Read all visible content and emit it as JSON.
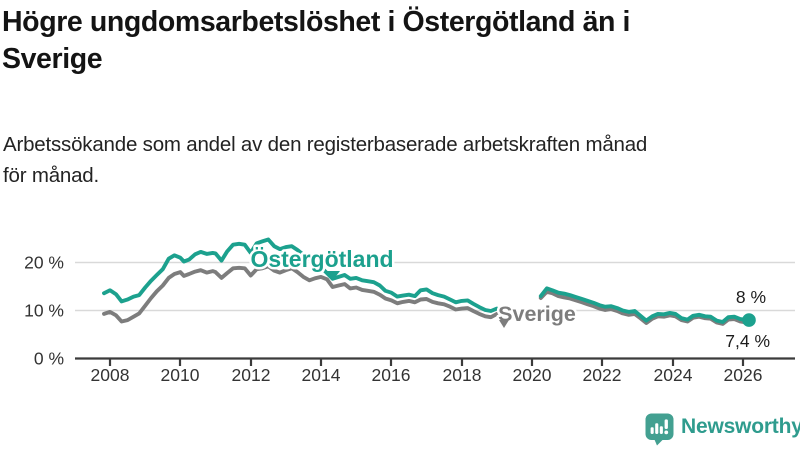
{
  "header": {
    "title_lines": [
      "Högre ungdomsarbetslöshet i Östergötland än i",
      "Sverige"
    ],
    "subtitle_lines": [
      "Arbetssökande som andel av den registerbaserade arbetskraften månad",
      "för månad."
    ]
  },
  "chart_data": {
    "type": "line",
    "title": "Högre ungdomsarbetslöshet i Östergötland än i Sverige",
    "subtitle": "Arbetssökande som andel av den registerbaserade arbetskraften månad för månad.",
    "unit": "%",
    "grid": true,
    "xlim": [
      2007.0,
      2027.5
    ],
    "ylim": [
      0,
      27
    ],
    "x_tick_labels": [
      "2008",
      "2010",
      "2012",
      "2014",
      "2016",
      "2018",
      "2020",
      "2022",
      "2024",
      "2026"
    ],
    "y_tick_labels": [
      "0 %",
      "10 %",
      "20 %"
    ],
    "y_tick_values": [
      0,
      10,
      20
    ],
    "gap_note": "data gap between 2019.0 and 2020.25",
    "series": [
      {
        "name": "Östergötland",
        "color": "#1ca18e",
        "end_label": "8 %",
        "latest_value": 8.0,
        "end_dot": true,
        "segments": [
          [
            [
              2007.83,
              13.6
            ],
            [
              2008.0,
              14.2
            ],
            [
              2008.17,
              13.4
            ],
            [
              2008.33,
              11.9
            ],
            [
              2008.5,
              12.3
            ],
            [
              2008.67,
              12.9
            ],
            [
              2008.83,
              13.2
            ],
            [
              2009.0,
              14.8
            ],
            [
              2009.17,
              16.2
            ],
            [
              2009.33,
              17.4
            ],
            [
              2009.5,
              18.6
            ],
            [
              2009.67,
              20.8
            ],
            [
              2009.83,
              21.5
            ],
            [
              2010.0,
              21.0
            ],
            [
              2010.1,
              20.2
            ],
            [
              2010.25,
              20.6
            ],
            [
              2010.42,
              21.7
            ],
            [
              2010.58,
              22.2
            ],
            [
              2010.75,
              21.8
            ],
            [
              2010.92,
              22.0
            ],
            [
              2011.0,
              21.9
            ],
            [
              2011.17,
              20.4
            ],
            [
              2011.33,
              22.3
            ],
            [
              2011.5,
              23.7
            ],
            [
              2011.67,
              23.9
            ],
            [
              2011.83,
              23.7
            ],
            [
              2012.0,
              22.0
            ],
            [
              2012.17,
              24.0
            ],
            [
              2012.33,
              24.4
            ],
            [
              2012.5,
              24.8
            ],
            [
              2012.67,
              23.4
            ],
            [
              2012.83,
              22.8
            ],
            [
              2013.0,
              23.2
            ],
            [
              2013.17,
              23.4
            ],
            [
              2013.33,
              22.6
            ],
            [
              2013.5,
              21.6
            ],
            [
              2013.67,
              20.7
            ],
            [
              2013.83,
              19.9
            ],
            [
              2014.0,
              19.0
            ],
            [
              2014.17,
              17.8
            ],
            [
              2014.33,
              16.6
            ],
            [
              2014.5,
              17.0
            ],
            [
              2014.67,
              17.4
            ],
            [
              2014.83,
              16.6
            ],
            [
              2015.0,
              16.8
            ],
            [
              2015.17,
              16.3
            ],
            [
              2015.33,
              16.1
            ],
            [
              2015.5,
              15.9
            ],
            [
              2015.67,
              15.2
            ],
            [
              2015.83,
              14.1
            ],
            [
              2016.0,
              13.7
            ],
            [
              2016.17,
              12.9
            ],
            [
              2016.33,
              13.1
            ],
            [
              2016.5,
              13.3
            ],
            [
              2016.67,
              13.0
            ],
            [
              2016.83,
              14.2
            ],
            [
              2017.0,
              14.4
            ],
            [
              2017.17,
              13.6
            ],
            [
              2017.33,
              13.2
            ],
            [
              2017.5,
              12.9
            ],
            [
              2017.67,
              12.3
            ],
            [
              2017.83,
              11.7
            ],
            [
              2018.0,
              12.0
            ],
            [
              2018.17,
              12.1
            ],
            [
              2018.33,
              11.4
            ],
            [
              2018.5,
              10.7
            ],
            [
              2018.67,
              10.1
            ],
            [
              2018.83,
              9.9
            ],
            [
              2019.0,
              10.4
            ]
          ],
          [
            [
              2020.25,
              13.0
            ],
            [
              2020.42,
              14.6
            ],
            [
              2020.58,
              14.2
            ],
            [
              2020.75,
              13.7
            ],
            [
              2020.92,
              13.5
            ],
            [
              2021.08,
              13.2
            ],
            [
              2021.25,
              12.8
            ],
            [
              2021.42,
              12.4
            ],
            [
              2021.58,
              12.0
            ],
            [
              2021.75,
              11.6
            ],
            [
              2021.92,
              11.1
            ],
            [
              2022.08,
              10.8
            ],
            [
              2022.25,
              10.9
            ],
            [
              2022.42,
              10.5
            ],
            [
              2022.58,
              10.0
            ],
            [
              2022.75,
              9.7
            ],
            [
              2022.92,
              9.9
            ],
            [
              2023.08,
              8.9
            ],
            [
              2023.25,
              7.9
            ],
            [
              2023.42,
              8.8
            ],
            [
              2023.58,
              9.3
            ],
            [
              2023.75,
              9.2
            ],
            [
              2023.92,
              9.5
            ],
            [
              2024.08,
              9.3
            ],
            [
              2024.25,
              8.4
            ],
            [
              2024.42,
              8.1
            ],
            [
              2024.58,
              8.9
            ],
            [
              2024.75,
              9.1
            ],
            [
              2024.92,
              8.8
            ],
            [
              2025.08,
              8.7
            ],
            [
              2025.25,
              7.9
            ],
            [
              2025.42,
              7.6
            ],
            [
              2025.58,
              8.6
            ],
            [
              2025.75,
              8.7
            ],
            [
              2025.92,
              8.2
            ],
            [
              2026.17,
              8.0
            ]
          ]
        ]
      },
      {
        "name": "Sverige",
        "color": "#7d7d7d",
        "end_label": "7,4 %",
        "latest_value": 7.4,
        "end_dot": false,
        "segments": [
          [
            [
              2007.83,
              9.3
            ],
            [
              2008.0,
              9.7
            ],
            [
              2008.17,
              9.0
            ],
            [
              2008.33,
              7.7
            ],
            [
              2008.5,
              8.0
            ],
            [
              2008.67,
              8.7
            ],
            [
              2008.83,
              9.4
            ],
            [
              2009.0,
              11.0
            ],
            [
              2009.17,
              12.6
            ],
            [
              2009.33,
              14.0
            ],
            [
              2009.5,
              15.2
            ],
            [
              2009.67,
              16.8
            ],
            [
              2009.83,
              17.6
            ],
            [
              2010.0,
              18.0
            ],
            [
              2010.1,
              17.2
            ],
            [
              2010.25,
              17.6
            ],
            [
              2010.42,
              18.1
            ],
            [
              2010.58,
              18.4
            ],
            [
              2010.75,
              17.9
            ],
            [
              2010.92,
              18.2
            ],
            [
              2011.0,
              18.0
            ],
            [
              2011.17,
              16.8
            ],
            [
              2011.33,
              17.8
            ],
            [
              2011.5,
              18.8
            ],
            [
              2011.67,
              18.9
            ],
            [
              2011.83,
              18.8
            ],
            [
              2012.0,
              17.3
            ],
            [
              2012.17,
              18.6
            ],
            [
              2012.33,
              18.8
            ],
            [
              2012.5,
              19.2
            ],
            [
              2012.67,
              18.3
            ],
            [
              2012.83,
              17.9
            ],
            [
              2013.0,
              18.4
            ],
            [
              2013.17,
              18.8
            ],
            [
              2013.33,
              18.0
            ],
            [
              2013.5,
              17.0
            ],
            [
              2013.67,
              16.3
            ],
            [
              2013.83,
              16.7
            ],
            [
              2014.0,
              17.0
            ],
            [
              2014.17,
              16.5
            ],
            [
              2014.33,
              14.9
            ],
            [
              2014.5,
              15.2
            ],
            [
              2014.67,
              15.5
            ],
            [
              2014.83,
              14.6
            ],
            [
              2015.0,
              14.8
            ],
            [
              2015.17,
              14.3
            ],
            [
              2015.33,
              14.1
            ],
            [
              2015.5,
              13.9
            ],
            [
              2015.67,
              13.3
            ],
            [
              2015.83,
              12.5
            ],
            [
              2016.0,
              12.1
            ],
            [
              2016.17,
              11.5
            ],
            [
              2016.33,
              11.8
            ],
            [
              2016.5,
              12.0
            ],
            [
              2016.67,
              11.7
            ],
            [
              2016.83,
              12.3
            ],
            [
              2017.0,
              12.4
            ],
            [
              2017.17,
              11.8
            ],
            [
              2017.33,
              11.5
            ],
            [
              2017.5,
              11.3
            ],
            [
              2017.67,
              10.8
            ],
            [
              2017.83,
              10.2
            ],
            [
              2018.0,
              10.4
            ],
            [
              2018.17,
              10.5
            ],
            [
              2018.33,
              9.9
            ],
            [
              2018.5,
              9.3
            ],
            [
              2018.67,
              8.8
            ],
            [
              2018.83,
              8.6
            ],
            [
              2019.0,
              9.3
            ]
          ],
          [
            [
              2020.25,
              12.6
            ],
            [
              2020.42,
              13.9
            ],
            [
              2020.58,
              13.6
            ],
            [
              2020.75,
              13.0
            ],
            [
              2020.92,
              12.7
            ],
            [
              2021.08,
              12.5
            ],
            [
              2021.25,
              12.1
            ],
            [
              2021.42,
              11.7
            ],
            [
              2021.58,
              11.3
            ],
            [
              2021.75,
              10.9
            ],
            [
              2021.92,
              10.4
            ],
            [
              2022.08,
              10.1
            ],
            [
              2022.25,
              10.3
            ],
            [
              2022.42,
              9.9
            ],
            [
              2022.58,
              9.4
            ],
            [
              2022.75,
              9.1
            ],
            [
              2022.92,
              9.3
            ],
            [
              2023.08,
              8.4
            ],
            [
              2023.25,
              7.4
            ],
            [
              2023.42,
              8.3
            ],
            [
              2023.58,
              8.8
            ],
            [
              2023.75,
              8.7
            ],
            [
              2023.92,
              9.0
            ],
            [
              2024.08,
              8.8
            ],
            [
              2024.25,
              8.0
            ],
            [
              2024.42,
              7.7
            ],
            [
              2024.58,
              8.5
            ],
            [
              2024.75,
              8.7
            ],
            [
              2024.92,
              8.4
            ],
            [
              2025.08,
              8.3
            ],
            [
              2025.25,
              7.5
            ],
            [
              2025.42,
              7.2
            ],
            [
              2025.58,
              8.1
            ],
            [
              2025.75,
              8.2
            ],
            [
              2025.92,
              7.7
            ],
            [
              2026.17,
              7.4
            ]
          ]
        ]
      }
    ],
    "colors": {
      "accent_teal": "#1ca18e",
      "series_gray": "#7d7d7d",
      "gridline": "#d9d9d9",
      "axis": "#3b3b3b"
    }
  },
  "footer": {
    "brand": "Newsworthy"
  }
}
